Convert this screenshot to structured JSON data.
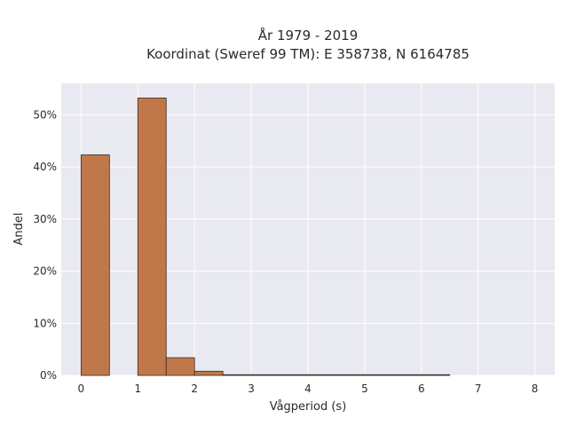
{
  "chart_data": {
    "type": "bar",
    "title_line1": "År 1979 - 2019",
    "title_line2": "Koordinat (Sweref 99 TM): E 358738, N 6164785",
    "xlabel": "Vågperiod (s)",
    "ylabel": "Andel",
    "x_ticks": [
      0,
      1,
      2,
      3,
      4,
      5,
      6,
      7,
      8
    ],
    "y_ticks": [
      0,
      10,
      20,
      30,
      40,
      50
    ],
    "y_tick_labels": [
      "0%",
      "10%",
      "20%",
      "30%",
      "40%",
      "50%"
    ],
    "xlim": [
      -0.35,
      8.35
    ],
    "ylim": [
      0,
      56
    ],
    "bin_width": 0.5,
    "bins": [
      {
        "x0": 0.0,
        "x1": 0.5,
        "value": 42.3
      },
      {
        "x0": 0.5,
        "x1": 1.0,
        "value": 0.0
      },
      {
        "x0": 1.0,
        "x1": 1.5,
        "value": 53.2
      },
      {
        "x0": 1.5,
        "x1": 2.0,
        "value": 3.4
      },
      {
        "x0": 2.0,
        "x1": 2.5,
        "value": 0.8
      },
      {
        "x0": 2.5,
        "x1": 3.0,
        "value": 0.1
      },
      {
        "x0": 3.0,
        "x1": 3.5,
        "value": 0.05
      },
      {
        "x0": 3.5,
        "x1": 4.0,
        "value": 0.03
      },
      {
        "x0": 4.0,
        "x1": 4.5,
        "value": 0.02
      },
      {
        "x0": 4.5,
        "x1": 5.0,
        "value": 0.02
      },
      {
        "x0": 5.0,
        "x1": 5.5,
        "value": 0.02
      },
      {
        "x0": 5.5,
        "x1": 6.0,
        "value": 0.02
      },
      {
        "x0": 6.0,
        "x1": 6.5,
        "value": 0.02
      }
    ],
    "bar_color": "#c0784a",
    "bar_edge_color": "#3a2a20",
    "plot_bg": "#e9e9f1",
    "grid": true,
    "grid_color": "#ffffff"
  }
}
